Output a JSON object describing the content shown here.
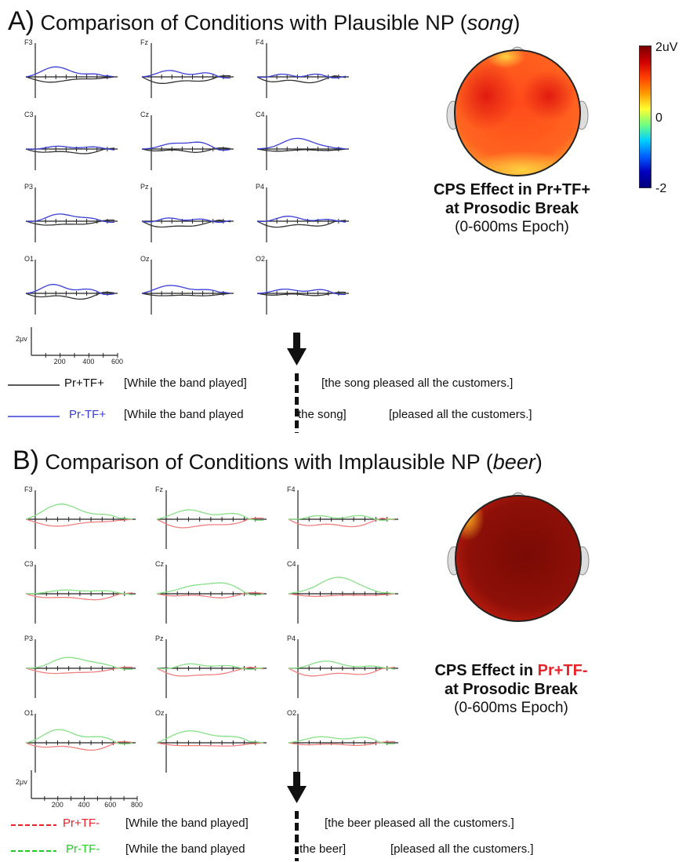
{
  "panel_a": {
    "letter": "A)",
    "title": "Comparison of Conditions with Plausible NP (",
    "np": "song",
    "close": ")",
    "electrodes": [
      "F3",
      "Fz",
      "F4",
      "C3",
      "Cz",
      "C4",
      "P3",
      "Pz",
      "P4",
      "O1",
      "Oz",
      "O2"
    ],
    "scale": {
      "amp_label": "2μv",
      "ticks": [
        "200",
        "400",
        "600"
      ]
    },
    "map_caption": {
      "line1_prefix": "CPS Effect in ",
      "line1_condition": "Pr+TF+",
      "line2": "at Prosodic Break",
      "epoch": "(0-600ms Epoch)"
    },
    "colorbar": {
      "max": "2uV",
      "mid": "0",
      "min": "-2"
    },
    "legend": [
      {
        "condition": "Pr+TF+",
        "color": "#222222",
        "style": "solid",
        "part1": "[While the band played]",
        "part2": "[the song pleased all the customers.]"
      },
      {
        "condition": "Pr-TF+",
        "color": "#3a3fd6",
        "style": "solid",
        "part1": "[While the band played",
        "part2": "the song]",
        "part3": "[pleased all the customers.]"
      }
    ]
  },
  "panel_b": {
    "letter": "B)",
    "title": "Comparison of Conditions with Implausible NP (",
    "np": "beer",
    "close": ")",
    "electrodes": [
      "F3",
      "Fz",
      "F4",
      "C3",
      "Cz",
      "C4",
      "P3",
      "Pz",
      "P4",
      "O1",
      "Oz",
      "O2"
    ],
    "scale": {
      "amp_label": "2μv",
      "ticks": [
        "200",
        "400",
        "600",
        "800"
      ]
    },
    "map_caption": {
      "line1_prefix": "CPS Effect in ",
      "line1_condition": "Pr+TF-",
      "line2": "at Prosodic Break",
      "epoch": "(0-600ms Epoch)"
    },
    "legend": [
      {
        "condition": "Pr+TF-",
        "color": "#e8232a",
        "style": "dashed",
        "part1": "[While the band played]",
        "part2": "[the beer pleased all the customers.]"
      },
      {
        "condition": "Pr-TF-",
        "color": "#22cc22",
        "style": "dashed",
        "part1": "[While the band played",
        "part2": "the beer]",
        "part3": "[pleased all the customers.]"
      }
    ]
  },
  "colors": {
    "a_ref": "#333333",
    "a_cmp": "#3a3fd6",
    "b_ref": "#f08080",
    "b_cmp": "#86e086",
    "highlight": "#e8232a"
  }
}
